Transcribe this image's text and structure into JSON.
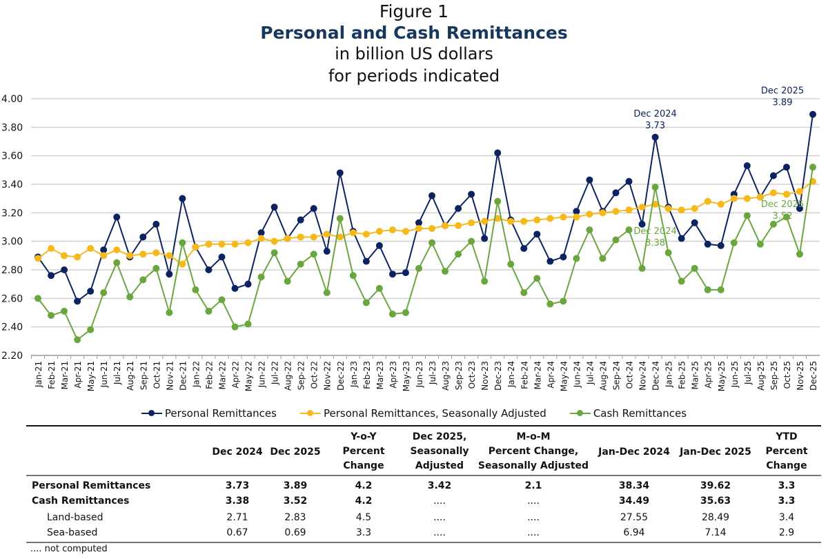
{
  "title": {
    "figure": "Figure 1",
    "main": "Personal and Cash Remittances",
    "unit": "in billion US dollars",
    "period": "for periods indicated"
  },
  "chart_data": {
    "type": "line",
    "title": "Personal and Cash Remittances",
    "ylim": [
      2.2,
      4.0
    ],
    "yticks": [
      "2.20",
      "2.40",
      "2.60",
      "2.80",
      "3.00",
      "3.20",
      "3.40",
      "3.60",
      "3.80",
      "4.00"
    ],
    "grid": true,
    "legend_position": "bottom",
    "x": [
      "Jan-21",
      "Feb-21",
      "Mar-21",
      "Apr-21",
      "May-21",
      "Jun-21",
      "Jul-21",
      "Aug-21",
      "Sep-21",
      "Oct-21",
      "Nov-21",
      "Dec-21",
      "Jan-22",
      "Feb-22",
      "Mar-22",
      "Apr-22",
      "May-22",
      "Jun-22",
      "Jul-22",
      "Aug-22",
      "Sep-22",
      "Oct-22",
      "Nov-22",
      "Dec-22",
      "Jan-23",
      "Feb-23",
      "Mar-23",
      "Apr-23",
      "May-23",
      "Jun-23",
      "Jul-23",
      "Aug-23",
      "Sep-23",
      "Oct-23",
      "Nov-23",
      "Dec-23",
      "Jan-24",
      "Feb-24",
      "Mar-24",
      "Apr-24",
      "May-24",
      "Jun-24",
      "Jul-24",
      "Aug-24",
      "Sep-24",
      "Oct-24",
      "Nov-24",
      "Dec-24",
      "Jan-25",
      "Feb-25",
      "Mar-25",
      "Apr-25",
      "May-25",
      "Jun-25",
      "Jul-25",
      "Aug-25",
      "Sep-25",
      "Oct-25",
      "Nov-25",
      "Dec-25"
    ],
    "series": [
      {
        "name": "Personal Remittances",
        "color": "#0d2260",
        "values": [
          2.89,
          2.76,
          2.8,
          2.58,
          2.65,
          2.94,
          3.17,
          2.89,
          3.03,
          3.12,
          2.77,
          3.3,
          2.96,
          2.8,
          2.89,
          2.67,
          2.7,
          3.06,
          3.24,
          3.02,
          3.15,
          3.23,
          2.93,
          3.48,
          3.07,
          2.86,
          2.97,
          2.77,
          2.78,
          3.13,
          3.32,
          3.11,
          3.23,
          3.33,
          3.02,
          3.62,
          3.15,
          2.95,
          3.05,
          2.86,
          2.89,
          3.21,
          3.43,
          3.21,
          3.34,
          3.42,
          3.12,
          3.73,
          3.24,
          3.02,
          3.13,
          2.98,
          2.97,
          3.33,
          3.53,
          3.31,
          3.46,
          3.52,
          3.23,
          3.89
        ]
      },
      {
        "name": "Personal Remittances, Seasonally Adjusted",
        "color": "#f5b91c",
        "values": [
          2.88,
          2.95,
          2.9,
          2.89,
          2.95,
          2.9,
          2.94,
          2.9,
          2.91,
          2.92,
          2.9,
          2.84,
          2.96,
          2.98,
          2.98,
          2.98,
          2.99,
          3.02,
          3.0,
          3.02,
          3.03,
          3.03,
          3.05,
          3.03,
          3.06,
          3.05,
          3.07,
          3.08,
          3.07,
          3.09,
          3.09,
          3.11,
          3.11,
          3.13,
          3.14,
          3.16,
          3.14,
          3.14,
          3.15,
          3.16,
          3.17,
          3.17,
          3.19,
          3.2,
          3.21,
          3.22,
          3.24,
          3.26,
          3.23,
          3.22,
          3.23,
          3.28,
          3.26,
          3.3,
          3.3,
          3.31,
          3.34,
          3.33,
          3.35,
          3.42
        ]
      },
      {
        "name": "Cash Remittances",
        "color": "#6aa63e",
        "values": [
          2.6,
          2.48,
          2.51,
          2.31,
          2.38,
          2.64,
          2.85,
          2.61,
          2.73,
          2.81,
          2.5,
          2.99,
          2.66,
          2.51,
          2.59,
          2.4,
          2.42,
          2.75,
          2.92,
          2.72,
          2.84,
          2.91,
          2.64,
          3.16,
          2.76,
          2.57,
          2.67,
          2.49,
          2.5,
          2.81,
          2.99,
          2.79,
          2.91,
          3.0,
          2.72,
          3.28,
          2.84,
          2.64,
          2.74,
          2.56,
          2.58,
          2.88,
          3.08,
          2.88,
          3.01,
          3.08,
          2.81,
          3.38,
          2.92,
          2.72,
          2.81,
          2.66,
          2.66,
          2.99,
          3.18,
          2.98,
          3.12,
          3.17,
          2.91,
          3.52
        ]
      }
    ],
    "annotations": [
      {
        "series": 0,
        "x": "Dec-24",
        "line1": "Dec 2024",
        "line2": "3.73"
      },
      {
        "series": 0,
        "x": "Dec-25",
        "line1": "Dec 2025",
        "line2": "3.89"
      },
      {
        "series": 2,
        "x": "Dec-24",
        "line1": "Dec 2024",
        "line2": "3.38"
      },
      {
        "series": 2,
        "x": "Dec-25",
        "line1": "Dec 2025",
        "line2": "3.52"
      }
    ]
  },
  "table": {
    "headers": [
      [
        "Dec 2024"
      ],
      [
        "Dec 2025"
      ],
      [
        "Y-o-Y",
        "Percent",
        "Change"
      ],
      [
        "Dec 2025,",
        "Seasonally",
        "Adjusted"
      ],
      [
        "M-o-M",
        "Percent Change,",
        "Seasonally Adjusted"
      ],
      [
        "Jan-Dec 2024"
      ],
      [
        "Jan-Dec 2025"
      ],
      [
        "YTD",
        "Percent",
        "Change"
      ]
    ],
    "rows": [
      {
        "label": "Personal Remittances",
        "bold": true,
        "cells": [
          "3.73",
          "3.89",
          "4.2",
          "3.42",
          "2.1",
          "38.34",
          "39.62",
          "3.3"
        ]
      },
      {
        "label": "Cash Remittances",
        "bold": true,
        "cells": [
          "3.38",
          "3.52",
          "4.2",
          "....",
          "....",
          "34.49",
          "35.63",
          "3.3"
        ]
      },
      {
        "label": "Land-based",
        "bold": false,
        "cells": [
          "2.71",
          "2.83",
          "4.5",
          "....",
          "....",
          "27.55",
          "28.49",
          "3.4"
        ]
      },
      {
        "label": "Sea-based",
        "bold": false,
        "cells": [
          "0.67",
          "0.69",
          "3.3",
          "....",
          "....",
          "6.94",
          "7.14",
          "2.9"
        ]
      }
    ],
    "footnote": ".... not computed"
  }
}
